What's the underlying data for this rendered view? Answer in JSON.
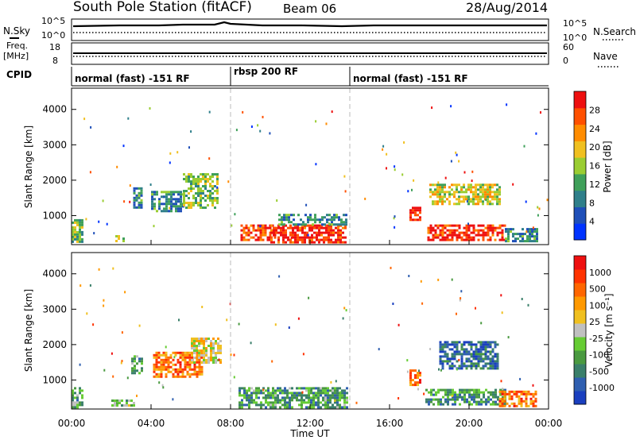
{
  "header": {
    "title": "South Pole Station (fitACF)",
    "beam": "Beam 06",
    "date": "28/Aug/2014"
  },
  "top_panels": {
    "nsky_label": "N.Sky",
    "nsky_hi": "10^5",
    "nsky_lo": "10^0",
    "nsearch_label": "N.Search",
    "nsearch_hi": "10^5",
    "nsearch_lo": "10^0",
    "freq_label": "Freq.",
    "freq_unit": "[MHz]",
    "freq_hi": "18",
    "freq_lo": "8",
    "nave_label": "Nave",
    "nave_hi": "60",
    "nave_lo": "0",
    "cpid_label": "CPID"
  },
  "cpid_segments": [
    {
      "label": "normal (fast) -151 RF",
      "start_hour": 0
    },
    {
      "label": "rbsp 200 RF",
      "start_hour": 8
    },
    {
      "label": "normal (fast) -151 RF",
      "start_hour": 14
    }
  ],
  "chart_data": [
    {
      "type": "heatmap",
      "name": "Power",
      "ylabel": "Slant Range [km]",
      "ylim": [
        180,
        4600
      ],
      "yticks": [
        "1000",
        "2000",
        "3000",
        "4000"
      ],
      "xlim": [
        0,
        24
      ],
      "colorbar": {
        "label": "Power [dB]",
        "ticks": [
          "4",
          "8",
          "12",
          "16",
          "20",
          "24",
          "28"
        ],
        "colors": [
          "#0033ff",
          "#1f4fb8",
          "#2f7f8a",
          "#3fa05a",
          "#9acd32",
          "#f0c020",
          "#ff8c00",
          "#ff5000",
          "#ee1010"
        ]
      },
      "regions": [
        {
          "t0": 0.0,
          "t1": 0.6,
          "r0": 250,
          "r1": 900,
          "level": 0.45
        },
        {
          "t0": 2.2,
          "t1": 2.6,
          "r0": 250,
          "r1": 450,
          "level": 0.5
        },
        {
          "t0": 3.1,
          "t1": 3.5,
          "r0": 1200,
          "r1": 1800,
          "level": 0.3
        },
        {
          "t0": 4.0,
          "t1": 5.6,
          "r0": 1100,
          "r1": 1700,
          "level": 0.3
        },
        {
          "t0": 5.6,
          "t1": 7.4,
          "r0": 1200,
          "r1": 2200,
          "level": 0.45
        },
        {
          "t0": 8.5,
          "t1": 10.2,
          "r0": 300,
          "r1": 750,
          "level": 0.85
        },
        {
          "t0": 10.0,
          "t1": 13.8,
          "r0": 250,
          "r1": 750,
          "level": 0.92
        },
        {
          "t0": 10.4,
          "t1": 13.8,
          "r0": 750,
          "r1": 1050,
          "level": 0.3
        },
        {
          "t0": 17.0,
          "t1": 17.5,
          "r0": 850,
          "r1": 1250,
          "level": 0.9
        },
        {
          "t0": 17.9,
          "t1": 21.8,
          "r0": 300,
          "r1": 750,
          "level": 0.9
        },
        {
          "t0": 18.0,
          "t1": 21.5,
          "r0": 1300,
          "r1": 1900,
          "level": 0.55
        },
        {
          "t0": 21.8,
          "t1": 23.4,
          "r0": 250,
          "r1": 650,
          "level": 0.3
        }
      ]
    },
    {
      "type": "heatmap",
      "name": "Velocity",
      "ylabel": "Slant Range [km]",
      "ylim": [
        180,
        4600
      ],
      "yticks": [
        "1000",
        "2000",
        "3000",
        "4000"
      ],
      "xlim": [
        0,
        24
      ],
      "xlabel": "Time UT",
      "xticks": [
        "00:00",
        "04:00",
        "08:00",
        "12:00",
        "16:00",
        "20:00",
        "00:00"
      ],
      "colorbar": {
        "label": "Velocity [m s⁻¹]",
        "ticks": [
          "1000",
          "500",
          "100",
          "25",
          "-25",
          "-100",
          "-500",
          "-1000"
        ],
        "colors": [
          "#1a3fbf",
          "#2f5fb0",
          "#3a7f6a",
          "#4a9a40",
          "#66cc33",
          "#c0c0c0",
          "#f0c020",
          "#ff9900",
          "#ff6600",
          "#ff3300",
          "#ee1010"
        ]
      },
      "regions": [
        {
          "t0": 0.0,
          "t1": 0.5,
          "r0": 250,
          "r1": 800,
          "level": 0.35
        },
        {
          "t0": 2.0,
          "t1": 3.2,
          "r0": 250,
          "r1": 450,
          "level": 0.4
        },
        {
          "t0": 3.0,
          "t1": 3.5,
          "r0": 1200,
          "r1": 1700,
          "level": 0.35
        },
        {
          "t0": 4.1,
          "t1": 6.6,
          "r0": 1100,
          "r1": 1800,
          "level": 0.75
        },
        {
          "t0": 6.0,
          "t1": 7.5,
          "r0": 1500,
          "r1": 2200,
          "level": 0.55
        },
        {
          "t0": 8.4,
          "t1": 13.8,
          "r0": 250,
          "r1": 800,
          "level": 0.3
        },
        {
          "t0": 17.0,
          "t1": 17.5,
          "r0": 850,
          "r1": 1300,
          "level": 0.75
        },
        {
          "t0": 17.8,
          "t1": 21.8,
          "r0": 300,
          "r1": 750,
          "level": 0.28
        },
        {
          "t0": 18.5,
          "t1": 21.5,
          "r0": 1300,
          "r1": 2100,
          "level": 0.15
        },
        {
          "t0": 21.5,
          "t1": 23.4,
          "r0": 250,
          "r1": 700,
          "level": 0.75
        }
      ]
    }
  ]
}
